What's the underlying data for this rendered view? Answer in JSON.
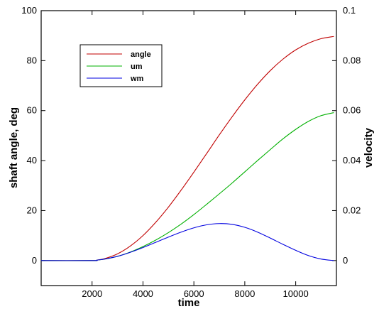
{
  "chart_data": {
    "type": "line",
    "title": "",
    "xlabel": "time",
    "ylabel": "shaft angle, deg",
    "y2label": "velocity",
    "xlim": [
      0,
      11600
    ],
    "ylim": [
      -10,
      100
    ],
    "y2lim": [
      -0.01,
      0.1
    ],
    "xticks": [
      2000,
      4000,
      6000,
      8000,
      10000
    ],
    "xtick_labels": [
      "2000",
      "4000",
      "6000",
      "8000",
      "10000"
    ],
    "yticks": [
      0,
      20,
      40,
      60,
      80,
      100
    ],
    "ytick_labels": [
      "0",
      "20",
      "40",
      "60",
      "80",
      "100"
    ],
    "y2ticks": [
      0,
      0.02,
      0.04,
      0.06,
      0.08,
      0.1
    ],
    "y2tick_labels": [
      "0",
      "0.02",
      "0.04",
      "0.06",
      "0.08",
      "0.1"
    ],
    "grid": false,
    "legend_position": "top-left",
    "series": [
      {
        "name": "angle",
        "color": "#c00000",
        "axis": "left",
        "x": [
          0,
          2000,
          2200,
          2500,
          3000,
          3500,
          4000,
          4500,
          5000,
          5500,
          6000,
          6500,
          7000,
          7500,
          8000,
          8500,
          9000,
          9500,
          10000,
          10500,
          11000,
          11500
        ],
        "y": [
          0,
          0,
          0.2,
          0.8,
          2.7,
          5.8,
          10.0,
          15.3,
          21.4,
          28.2,
          35.4,
          42.8,
          50.3,
          57.5,
          64.3,
          70.5,
          76.0,
          80.6,
          84.3,
          87.0,
          88.8,
          89.7
        ]
      },
      {
        "name": "um",
        "color": "#00b000",
        "axis": "left",
        "x": [
          0,
          2000,
          2200,
          2500,
          3000,
          3500,
          4000,
          4500,
          5000,
          5500,
          6000,
          6500,
          7000,
          7500,
          8000,
          8500,
          9000,
          9500,
          10000,
          10500,
          11000,
          11500
        ],
        "y": [
          0,
          0,
          0.2,
          0.6,
          1.7,
          3.4,
          5.6,
          8.2,
          11.2,
          14.6,
          18.4,
          22.5,
          26.7,
          31.0,
          35.5,
          40.0,
          44.4,
          48.7,
          52.5,
          55.7,
          58.0,
          59.2
        ]
      },
      {
        "name": "wm",
        "color": "#0000e0",
        "axis": "left",
        "x": [
          0,
          2000,
          2200,
          2500,
          3000,
          3500,
          4000,
          4500,
          5000,
          5500,
          6000,
          6500,
          7000,
          7500,
          8000,
          8500,
          9000,
          9500,
          10000,
          10500,
          11000,
          11500
        ],
        "y": [
          0,
          0,
          0.2,
          0.6,
          1.7,
          3.3,
          5.2,
          7.3,
          9.4,
          11.4,
          13.1,
          14.3,
          14.8,
          14.5,
          13.3,
          11.4,
          9.0,
          6.5,
          4.1,
          2.0,
          0.6,
          0.0
        ]
      }
    ]
  }
}
